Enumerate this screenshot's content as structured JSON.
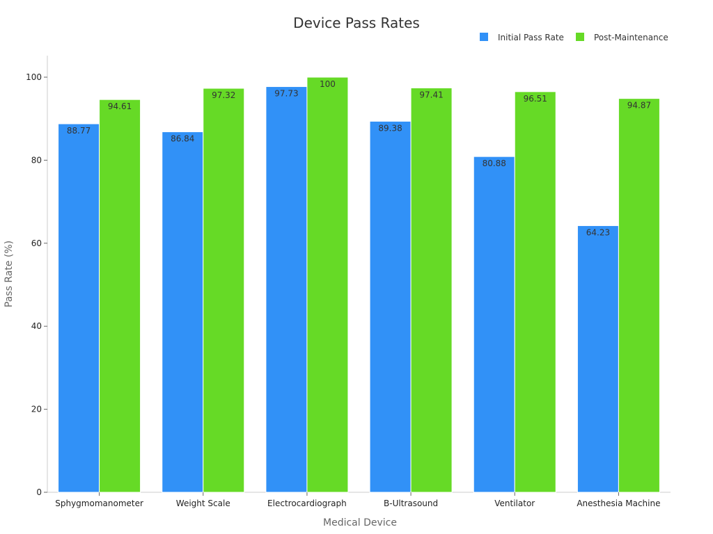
{
  "chart_data": {
    "type": "bar",
    "title": "Device Pass Rates",
    "xlabel": "Medical Device",
    "ylabel": "Pass Rate (%)",
    "ylim": [
      0,
      105
    ],
    "yticks": [
      0,
      20,
      40,
      60,
      80,
      100
    ],
    "grid": false,
    "legend_position": "top-right",
    "categories": [
      "Sphygmomanometer",
      "Weight Scale",
      "Electrocardiograph",
      "B-Ultrasound",
      "Ventilator",
      "Anesthesia Machine"
    ],
    "series": [
      {
        "name": "Initial Pass Rate",
        "color": "#3191F7",
        "values": [
          88.77,
          86.84,
          97.73,
          89.38,
          80.88,
          64.23
        ]
      },
      {
        "name": "Post-Maintenance",
        "color": "#66DA26",
        "values": [
          94.61,
          97.32,
          100,
          97.41,
          96.51,
          94.87
        ]
      }
    ]
  }
}
